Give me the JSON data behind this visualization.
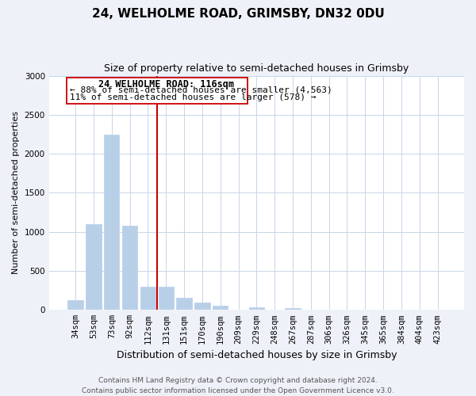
{
  "title": "24, WELHOLME ROAD, GRIMSBY, DN32 0DU",
  "subtitle": "Size of property relative to semi-detached houses in Grimsby",
  "xlabel": "Distribution of semi-detached houses by size in Grimsby",
  "ylabel": "Number of semi-detached properties",
  "categories": [
    "34sqm",
    "53sqm",
    "73sqm",
    "92sqm",
    "112sqm",
    "131sqm",
    "151sqm",
    "170sqm",
    "190sqm",
    "209sqm",
    "229sqm",
    "248sqm",
    "267sqm",
    "287sqm",
    "306sqm",
    "326sqm",
    "345sqm",
    "365sqm",
    "384sqm",
    "404sqm",
    "423sqm"
  ],
  "values": [
    120,
    1100,
    2240,
    1080,
    300,
    300,
    160,
    90,
    50,
    0,
    30,
    0,
    25,
    0,
    0,
    0,
    0,
    0,
    0,
    0,
    0
  ],
  "bar_color": "#b8cfe8",
  "bar_edge_color": "#b8cfe8",
  "vline_color": "#cc0000",
  "vline_x_index": 4,
  "annotation_title": "24 WELHOLME ROAD: 116sqm",
  "annotation_line1": "← 88% of semi-detached houses are smaller (4,563)",
  "annotation_line2": "11% of semi-detached houses are larger (578) →",
  "ylim": [
    0,
    3000
  ],
  "yticks": [
    0,
    500,
    1000,
    1500,
    2000,
    2500,
    3000
  ],
  "footnote1": "Contains HM Land Registry data © Crown copyright and database right 2024.",
  "footnote2": "Contains public sector information licensed under the Open Government Licence v3.0.",
  "bg_color": "#eef2f8",
  "plot_bg_color": "#ffffff",
  "grid_color": "#c8d4e8",
  "title_fontsize": 11,
  "subtitle_fontsize": 9,
  "ylabel_fontsize": 8,
  "xlabel_fontsize": 9,
  "tick_fontsize": 7.5,
  "footnote_fontsize": 6.5
}
